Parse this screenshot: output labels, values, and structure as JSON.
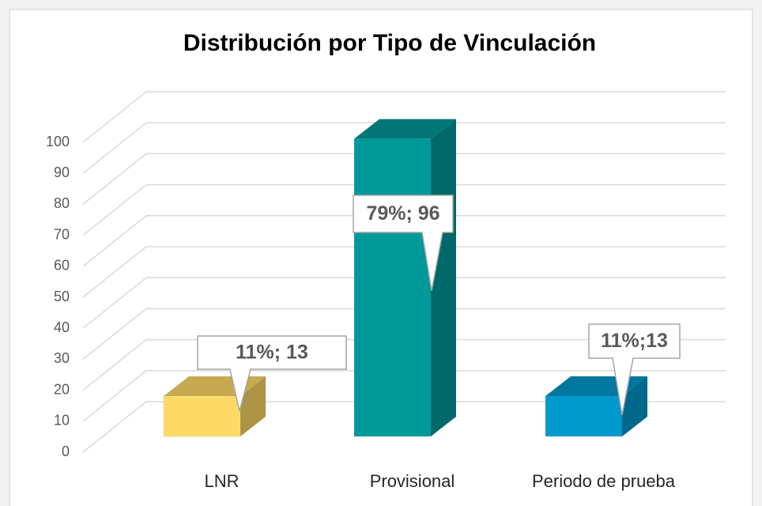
{
  "chart_data": {
    "type": "bar3d",
    "title": "Distribución por Tipo de Vinculación",
    "categories": [
      "LNR",
      "Provisional",
      "Periodo de prueba"
    ],
    "values": [
      13,
      96,
      13
    ],
    "value_labels": [
      "11%; 13",
      "79%; 96",
      "11%;13"
    ],
    "colors": [
      "#ffd966",
      "#009999",
      "#0099cc"
    ],
    "ylim": [
      0,
      100
    ],
    "yticks": [
      0,
      10,
      20,
      30,
      40,
      50,
      60,
      70,
      80,
      90,
      100
    ],
    "grid": true
  }
}
